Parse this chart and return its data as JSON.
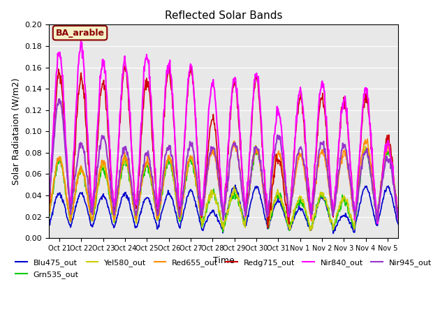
{
  "title": "Reflected Solar Bands",
  "xlabel": "Time",
  "ylabel": "Solar Radiataion (W/m2)",
  "background_color": "#e8e8e8",
  "annotation_text": "BA_arable",
  "annotation_color": "#8B0000",
  "annotation_bg": "#f5f0c8",
  "ylim": [
    0,
    0.2
  ],
  "series": {
    "Blu475_out": {
      "color": "#0000cd",
      "lw": 1.2
    },
    "Grn535_out": {
      "color": "#00cc00",
      "lw": 1.2
    },
    "Yel580_out": {
      "color": "#cccc00",
      "lw": 1.2
    },
    "Red655_out": {
      "color": "#ff8c00",
      "lw": 1.2
    },
    "Redg715_out": {
      "color": "#cc0000",
      "lw": 1.2
    },
    "Nir840_out": {
      "color": "#ff00ff",
      "lw": 1.5
    },
    "Nir945_out": {
      "color": "#9932cc",
      "lw": 1.5
    }
  },
  "x_tick_labels": [
    "Oct 21",
    "Oct 22",
    "Oct 23",
    "Oct 24",
    "Oct 25",
    "Oct 26",
    "Oct 27",
    "Oct 28",
    "Oct 29",
    "Oct 30",
    "Oct 31",
    "Nov 1",
    "Nov 2",
    "Nov 3",
    "Nov 4",
    "Nov 5"
  ],
  "yticks": [
    0.0,
    0.02,
    0.04,
    0.06,
    0.08,
    0.1,
    0.12,
    0.14,
    0.16,
    0.18,
    0.2
  ],
  "peaks_nir840": [
    0.175,
    0.18,
    0.165,
    0.165,
    0.17,
    0.165,
    0.16,
    0.145,
    0.15,
    0.155,
    0.12,
    0.138,
    0.145,
    0.13,
    0.14,
    0.09
  ],
  "peaks_nir945": [
    0.13,
    0.088,
    0.094,
    0.085,
    0.08,
    0.086,
    0.088,
    0.085,
    0.09,
    0.085,
    0.095,
    0.085,
    0.09,
    0.086,
    0.082,
    0.075
  ],
  "peaks_redg715": [
    0.155,
    0.15,
    0.145,
    0.158,
    0.148,
    0.158,
    0.158,
    0.112,
    0.145,
    0.148,
    0.075,
    0.132,
    0.132,
    0.128,
    0.133,
    0.095
  ],
  "peaks_red655": [
    0.075,
    0.065,
    0.072,
    0.076,
    0.072,
    0.076,
    0.076,
    0.082,
    0.088,
    0.082,
    0.08,
    0.078,
    0.082,
    0.08,
    0.092,
    0.085
  ],
  "peaks_grn535": [
    0.072,
    0.065,
    0.065,
    0.072,
    0.068,
    0.072,
    0.072,
    0.042,
    0.042,
    0.082,
    0.04,
    0.035,
    0.04,
    0.035,
    0.082,
    0.082
  ],
  "peaks_yel580": [
    0.075,
    0.065,
    0.068,
    0.075,
    0.07,
    0.075,
    0.075,
    0.044,
    0.044,
    0.085,
    0.042,
    0.038,
    0.042,
    0.038,
    0.085,
    0.085
  ],
  "peaks_blu475": [
    0.042,
    0.042,
    0.04,
    0.042,
    0.038,
    0.042,
    0.044,
    0.025,
    0.048,
    0.048,
    0.035,
    0.028,
    0.038,
    0.022,
    0.048,
    0.048
  ]
}
